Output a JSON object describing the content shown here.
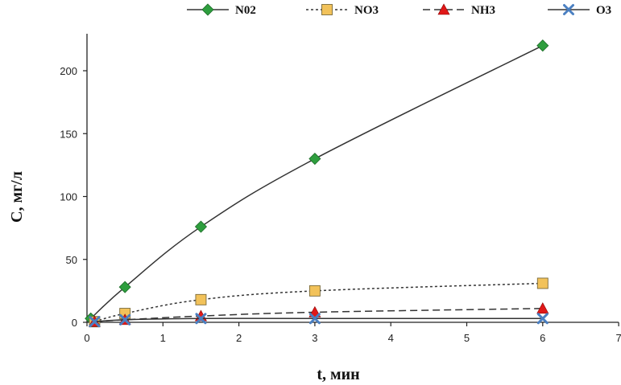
{
  "chart_data": {
    "type": "line",
    "xlabel": "t, мин",
    "ylabel": "C, мг/л",
    "xlim": [
      0,
      7
    ],
    "ylim": [
      0,
      225
    ],
    "x_ticks": [
      0,
      1,
      2,
      3,
      4,
      5,
      6,
      7
    ],
    "y_ticks": [
      0,
      50,
      100,
      150,
      200
    ],
    "grid": false,
    "legend_position": "top",
    "series": [
      {
        "name": "N02",
        "color": "#2e9e3e",
        "marker": "diamond",
        "line": "solid",
        "x": [
          0.05,
          0.5,
          1.5,
          3.0,
          6.0
        ],
        "y": [
          3,
          28,
          76,
          130,
          220
        ]
      },
      {
        "name": "NO3",
        "color": "#f2c25a",
        "marker": "square",
        "line": "dotted",
        "x": [
          0.1,
          0.5,
          1.5,
          3.0,
          6.0
        ],
        "y": [
          0.5,
          7,
          18,
          25,
          31
        ]
      },
      {
        "name": "NH3",
        "color": "#e01818",
        "marker": "triangle",
        "line": "dashed",
        "x": [
          0.1,
          0.5,
          1.5,
          3.0,
          6.0
        ],
        "y": [
          0.5,
          2,
          5,
          8,
          11
        ]
      },
      {
        "name": "O3",
        "color": "#4a7fc1",
        "marker": "x",
        "line": "solid",
        "x": [
          0.1,
          0.5,
          1.5,
          3.0,
          6.0
        ],
        "y": [
          0.5,
          2,
          3,
          3,
          3
        ]
      }
    ]
  }
}
